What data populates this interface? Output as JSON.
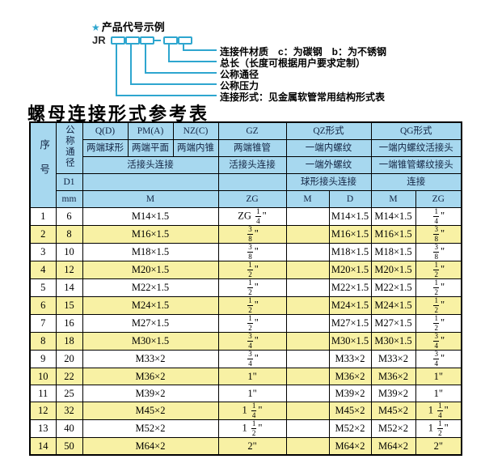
{
  "colors": {
    "accent_teal": "#2ea6cf",
    "header_bg": "#a7d8ef",
    "row_yellow": "#f8f1a4",
    "row_white": "#ffffff",
    "border": "#000000"
  },
  "diagram": {
    "star": "★",
    "title": "产品代号示例",
    "prefix": "JR",
    "labels": [
      "连接件材质　c：为碳钢　b：为不锈钢",
      "总长（长度可根据用户要求定制）",
      "公称通径",
      "公称压力",
      "连接形式：见金属软管常用结构形式表"
    ]
  },
  "table_title": "螺母连接形式参考表",
  "table": {
    "header": {
      "col_seq": "序号",
      "col_dn": "公称通径",
      "d1": "D1",
      "mm": "mm",
      "q": "Q(D)",
      "pm": "PM(A)",
      "nz": "NZ(C)",
      "gz": "GZ",
      "qz": "QZ形式",
      "qg": "QG形式",
      "q_desc": "两端球形",
      "pm_desc": "两端平面",
      "nz_desc": "两端内锥",
      "gz_desc": "两端锥管",
      "qz_desc1": "一端内螺纹",
      "qg_desc1": "一端内螺纹活接头",
      "union_conn": "活接头连接",
      "gz_conn": "活接头连接",
      "qz_desc2": "一端外螺纹",
      "qg_desc2": "一端锥管螺纹接头",
      "qz_conn": "球形接头连接",
      "qg_conn": "连接",
      "unit_m": "M",
      "unit_zg": "ZG",
      "unit_qz_m": "M",
      "unit_qz_d": "D",
      "unit_qg_m": "M",
      "unit_qg_zg": "ZG"
    },
    "rows": [
      {
        "no": "1",
        "dn": "6",
        "m": "M14×1.5",
        "zg": "ZG 1/4\"",
        "qz_m": "",
        "qz_d": "M14×1.5",
        "qg_m": "M14×1.5",
        "qg_zg": "1/4\""
      },
      {
        "no": "2",
        "dn": "8",
        "m": "M16×1.5",
        "zg": "3/8\"",
        "qz_m": "",
        "qz_d": "M16×1.5",
        "qg_m": "M16×1.5",
        "qg_zg": "3/8\""
      },
      {
        "no": "3",
        "dn": "10",
        "m": "M18×1.5",
        "zg": "3/8\"",
        "qz_m": "",
        "qz_d": "M18×1.5",
        "qg_m": "M18×1.5",
        "qg_zg": "3/8\""
      },
      {
        "no": "4",
        "dn": "12",
        "m": "M20×1.5",
        "zg": "1/2\"",
        "qz_m": "",
        "qz_d": "M20×1.5",
        "qg_m": "M20×1.5",
        "qg_zg": "1/2\""
      },
      {
        "no": "5",
        "dn": "14",
        "m": "M22×1.5",
        "zg": "1/2\"",
        "qz_m": "",
        "qz_d": "M22×1.5",
        "qg_m": "M22×1.5",
        "qg_zg": "1/2\""
      },
      {
        "no": "6",
        "dn": "15",
        "m": "M24×1.5",
        "zg": "1/2\"",
        "qz_m": "",
        "qz_d": "M24×1.5",
        "qg_m": "M24×1.5",
        "qg_zg": "1/2\""
      },
      {
        "no": "7",
        "dn": "16",
        "m": "M27×1.5",
        "zg": "1/2\"",
        "qz_m": "",
        "qz_d": "M27×1.5",
        "qg_m": "M27×1.5",
        "qg_zg": "1/2\""
      },
      {
        "no": "8",
        "dn": "18",
        "m": "M30×1.5",
        "zg": "3/4\"",
        "qz_m": "",
        "qz_d": "M30×1.5",
        "qg_m": "M30×1.5",
        "qg_zg": "3/4\""
      },
      {
        "no": "9",
        "dn": "20",
        "m": "M33×2",
        "zg": "3/4\"",
        "qz_m": "",
        "qz_d": "M33×2",
        "qg_m": "M33×2",
        "qg_zg": "3/4\""
      },
      {
        "no": "10",
        "dn": "22",
        "m": "M36×2",
        "zg": "1\"",
        "qz_m": "",
        "qz_d": "M36×2",
        "qg_m": "M36×2",
        "qg_zg": "1\""
      },
      {
        "no": "11",
        "dn": "25",
        "m": "M39×2",
        "zg": "1\"",
        "qz_m": "",
        "qz_d": "M39×2",
        "qg_m": "M39×2",
        "qg_zg": "1\""
      },
      {
        "no": "12",
        "dn": "32",
        "m": "M45×2",
        "zg": "1 1/4\"",
        "qz_m": "",
        "qz_d": "M45×2",
        "qg_m": "M45×2",
        "qg_zg": "1 1/4\""
      },
      {
        "no": "13",
        "dn": "40",
        "m": "M52×2",
        "zg": "1 1/2\"",
        "qz_m": "",
        "qz_d": "M52×2",
        "qg_m": "M52×2",
        "qg_zg": "1 1/2\""
      },
      {
        "no": "14",
        "dn": "50",
        "m": "M64×2",
        "zg": "2\"",
        "qz_m": "",
        "qz_d": "M64×2",
        "qg_m": "M64×2",
        "qg_zg": "2\""
      }
    ]
  }
}
